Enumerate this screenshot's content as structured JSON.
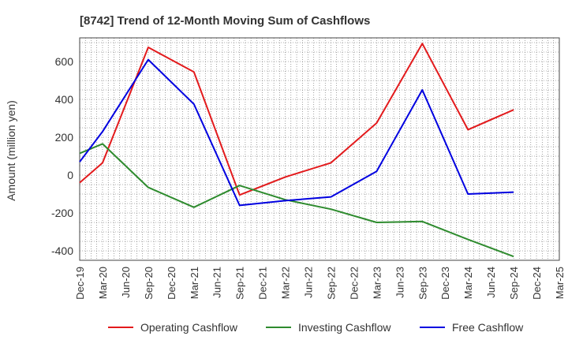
{
  "chart_data": {
    "type": "line",
    "title": "[8742]  Trend of 12-Month Moving Sum of Cashflows",
    "xlabel": "",
    "ylabel": "Amount (million yen)",
    "categories": [
      "Dec-19",
      "Mar-20",
      "Jun-20",
      "Sep-20",
      "Dec-20",
      "Mar-21",
      "Jun-21",
      "Sep-21",
      "Dec-21",
      "Mar-22",
      "Jun-22",
      "Sep-22",
      "Dec-22",
      "Mar-23",
      "Jun-23",
      "Sep-23",
      "Dec-23",
      "Mar-24",
      "Jun-24",
      "Sep-24",
      "Dec-24",
      "Mar-25"
    ],
    "ylim": [
      -450,
      725
    ],
    "yticks": [
      -400,
      -200,
      0,
      200,
      400,
      600
    ],
    "grid": true,
    "legend": "bottom",
    "series": [
      {
        "name": "Operating Cashflow",
        "color": "#e31a1c",
        "values": [
          -40,
          65,
          null,
          675,
          null,
          545,
          null,
          -105,
          null,
          -10,
          null,
          65,
          null,
          275,
          null,
          695,
          null,
          240,
          null,
          345,
          null,
          null
        ]
      },
      {
        "name": "Investing Cashflow",
        "color": "#2e8b2e",
        "values": [
          115,
          165,
          null,
          -65,
          null,
          -170,
          null,
          -55,
          null,
          -130,
          null,
          -180,
          null,
          -250,
          null,
          -245,
          null,
          -340,
          null,
          -430,
          null,
          null
        ]
      },
      {
        "name": "Free Cashflow",
        "color": "#0000e0",
        "values": [
          70,
          230,
          null,
          610,
          null,
          375,
          null,
          -160,
          null,
          -135,
          null,
          -115,
          null,
          20,
          null,
          450,
          null,
          -100,
          null,
          -90,
          null,
          null
        ]
      }
    ]
  }
}
